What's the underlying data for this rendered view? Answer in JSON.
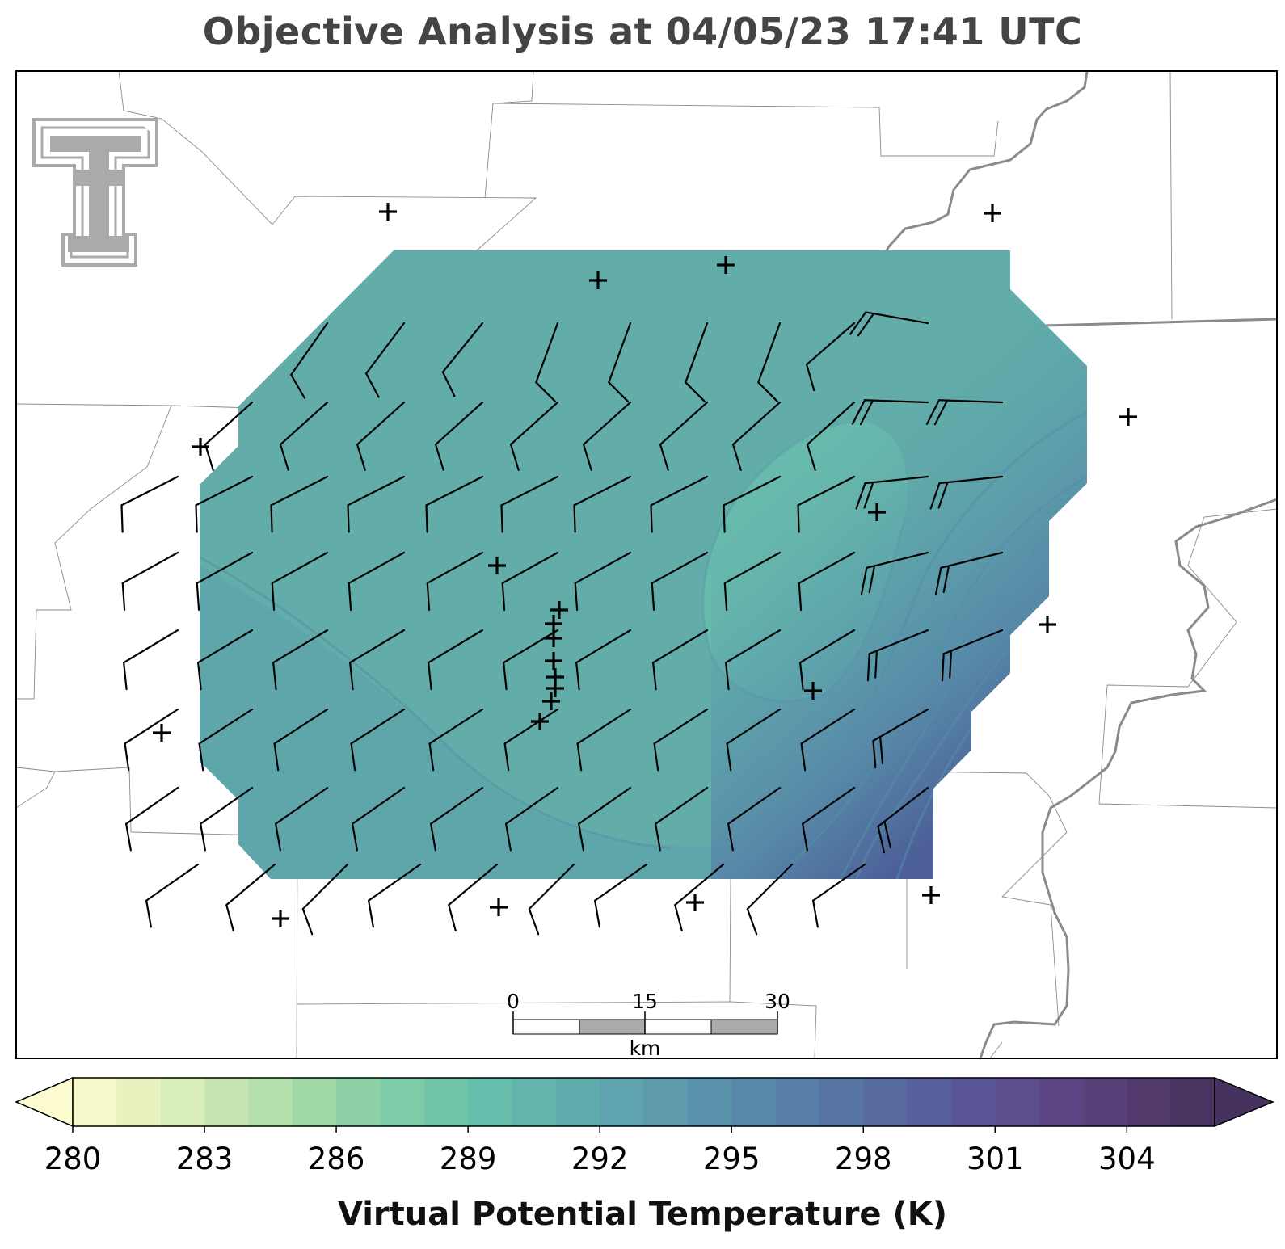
{
  "title": "Objective Analysis at 04/05/23 17:41 UTC",
  "logo_text": "TT",
  "scalebar": {
    "ticks": [
      "0",
      "15",
      "30"
    ],
    "unit": "km"
  },
  "colorbar": {
    "label": "Virtual Potential Temperature (K)",
    "ticks": [
      "280",
      "283",
      "286",
      "289",
      "292",
      "295",
      "298",
      "301",
      "304"
    ],
    "min": 280,
    "max": 306,
    "step": 1,
    "extend": "both",
    "colormap": "crest",
    "colors": [
      "#f5f8c9",
      "#e8f2be",
      "#d9edb8",
      "#c6e6b1",
      "#b3dfac",
      "#a0d8a8",
      "#8ed1a6",
      "#7ecba7",
      "#70c4a9",
      "#66bdab",
      "#62b4ad",
      "#60acad",
      "#5ea3ad",
      "#5c9aac",
      "#5a92ab",
      "#5889aa",
      "#577fa8",
      "#5675a4",
      "#576ba0",
      "#58619b",
      "#5a5696",
      "#5b4d8e",
      "#5b4585",
      "#584078",
      "#523a6c",
      "#4a3461"
    ],
    "under_color": "#fcfcd0",
    "over_color": "#45325f"
  },
  "analysis_colors": {
    "base": "#62adaa",
    "warm_core": "#67bbac",
    "gradient_east": "#4a669a"
  }
}
